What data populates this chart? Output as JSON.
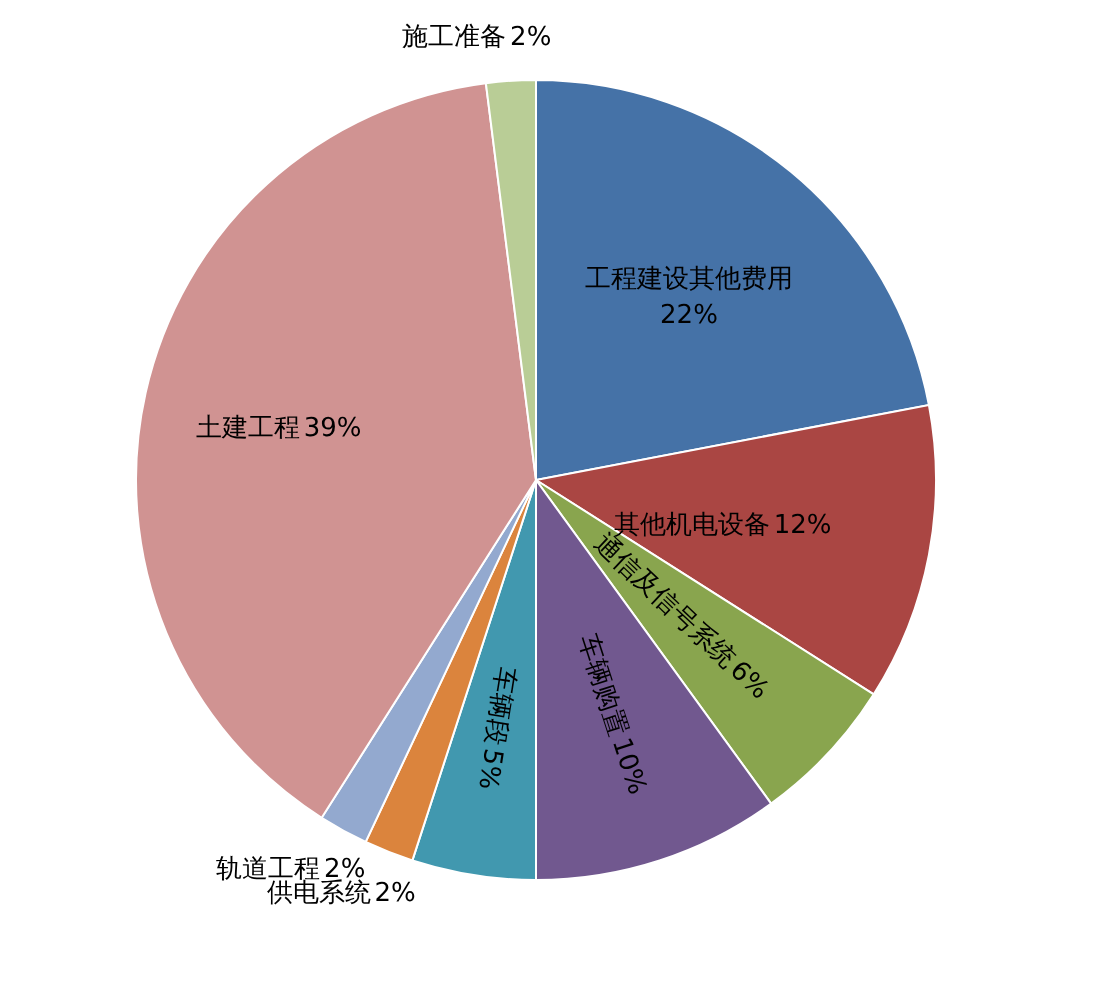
{
  "chart_data": {
    "type": "pie",
    "value_labels": [
      "22%",
      "12%",
      "6%",
      "10%",
      "5%",
      "2%",
      "2%",
      "39%",
      "2%"
    ],
    "categories": [
      "工程建设其他费用",
      "其他机电设备",
      "通信及信号系统",
      "车辆购置",
      "车辆段",
      "供电系统",
      "轨道工程",
      "土建工程",
      "施工准备"
    ],
    "values": [
      22,
      12,
      6,
      10,
      5,
      2,
      2,
      39,
      2
    ],
    "colors": [
      "#4572a7",
      "#aa4643",
      "#89a54e",
      "#71588f",
      "#4198af",
      "#db843d",
      "#93a9cf",
      "#d09392",
      "#b9cd96"
    ]
  }
}
